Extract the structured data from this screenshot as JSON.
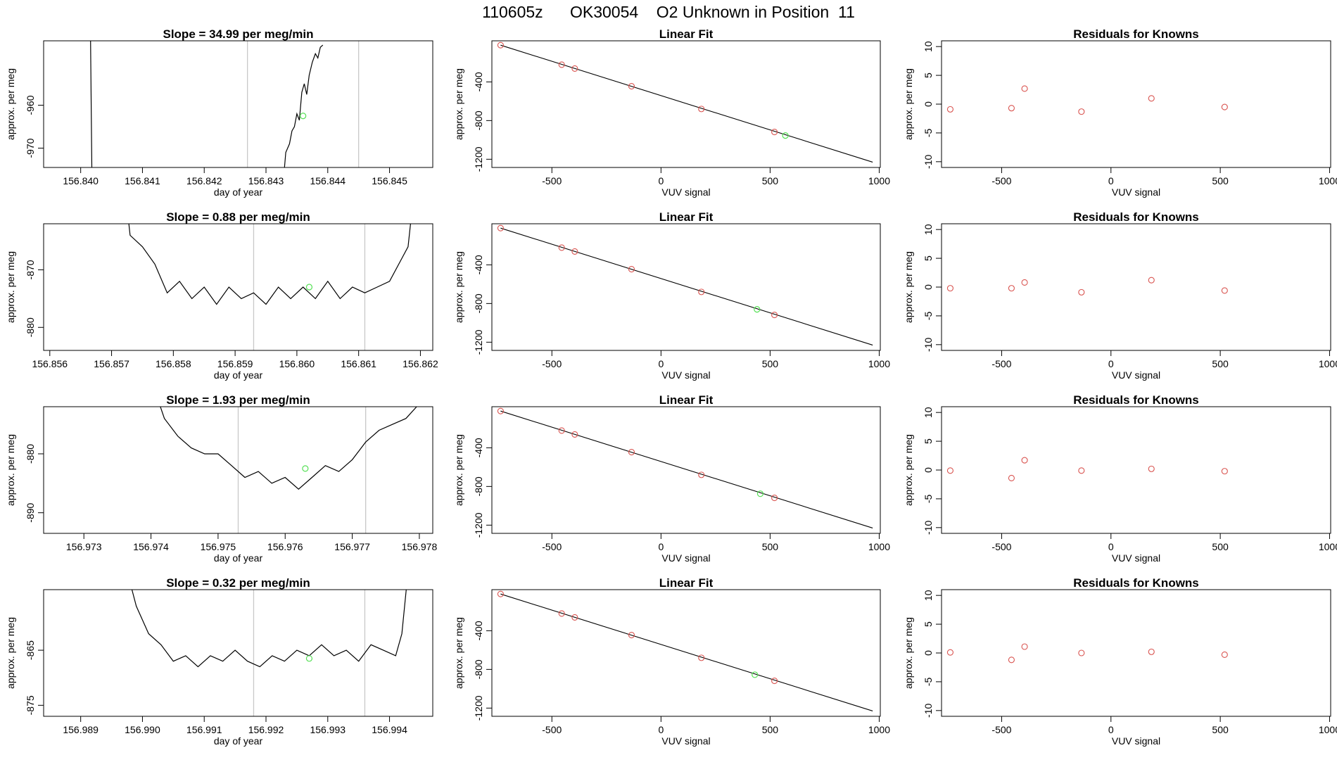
{
  "header": {
    "title": "110605z      OK30054    O2 Unknown in Position  11"
  },
  "colors": {
    "known": "#d9534f",
    "unknown": "#55e055",
    "line": "#000000",
    "marker": "#c8c8c8"
  },
  "chart_data": [
    {
      "type": "line",
      "title": "Slope =  34.99  per meg/min",
      "xlabel": "day of year",
      "ylabel": "approx. per meg",
      "xlim": [
        156.8394,
        156.8457
      ],
      "ylim": [
        -974.5,
        -945
      ],
      "xticks": [
        156.84,
        156.841,
        156.842,
        156.843,
        156.844,
        156.845
      ],
      "xtick_decimals": 3,
      "yticks": [
        -970,
        -960
      ],
      "markers": [
        156.8427,
        156.8445
      ],
      "point": [
        156.8436,
        -962.5
      ],
      "trace": [
        [
          156.84016,
          -945
        ],
        [
          156.84017,
          -960
        ],
        [
          156.84018,
          -974.5
        ]
      ],
      "trace2": [
        [
          156.8433,
          -974.5
        ],
        [
          156.84332,
          -971
        ],
        [
          156.84338,
          -969
        ],
        [
          156.84342,
          -966
        ],
        [
          156.84346,
          -965
        ],
        [
          156.8435,
          -962
        ],
        [
          156.84354,
          -963.5
        ],
        [
          156.84358,
          -957
        ],
        [
          156.84362,
          -955
        ],
        [
          156.84366,
          -957.5
        ],
        [
          156.8437,
          -953
        ],
        [
          156.84375,
          -950
        ],
        [
          156.8438,
          -948
        ],
        [
          156.84384,
          -949
        ],
        [
          156.84388,
          -946.5
        ],
        [
          156.84392,
          -946
        ]
      ]
    },
    {
      "type": "scatter",
      "title": "Linear Fit",
      "xlabel": "VUV signal",
      "ylabel": "approx. per meg",
      "xlim": [
        -775,
        1005
      ],
      "ylim": [
        -1285,
        25
      ],
      "xticks": [
        -500,
        0,
        500,
        1000
      ],
      "yticks": [
        -400,
        -800,
        -1200
      ],
      "fit_line": [
        [
          -735,
          -20
        ],
        [
          970,
          -1230
        ]
      ],
      "knowns": [
        [
          -735,
          -20
        ],
        [
          -455,
          -222
        ],
        [
          -395,
          -262
        ],
        [
          -135,
          -445
        ],
        [
          185,
          -680
        ],
        [
          520,
          -918
        ]
      ],
      "unknown": [
        [
          570,
          -955
        ]
      ]
    },
    {
      "type": "scatter",
      "title": "Residuals for Knowns",
      "xlabel": "VUV signal",
      "ylabel": "approx. per meg",
      "xlim": [
        -775,
        1005
      ],
      "ylim": [
        -11,
        11
      ],
      "xticks": [
        -500,
        0,
        500,
        1000
      ],
      "yticks": [
        -10,
        -5,
        0,
        5,
        10
      ],
      "knowns": [
        [
          -735,
          -0.9
        ],
        [
          -455,
          -0.7
        ],
        [
          -395,
          2.7
        ],
        [
          -135,
          -1.3
        ],
        [
          185,
          1.0
        ],
        [
          520,
          -0.5
        ]
      ]
    },
    {
      "type": "line",
      "title": "Slope =  0.88  per meg/min",
      "xlabel": "day of year",
      "ylabel": "approx. per meg",
      "xlim": [
        156.8559,
        156.8622
      ],
      "ylim": [
        -884,
        -862
      ],
      "xticks": [
        156.856,
        156.857,
        156.858,
        156.859,
        156.86,
        156.861,
        156.862
      ],
      "xtick_decimals": 3,
      "yticks": [
        -880,
        -870
      ],
      "markers": [
        156.8593,
        156.8611
      ],
      "point": [
        156.8602,
        -873
      ],
      "trace": [
        [
          156.85728,
          -862
        ],
        [
          156.8573,
          -864
        ],
        [
          156.8575,
          -866
        ],
        [
          156.8577,
          -869
        ],
        [
          156.8579,
          -874
        ],
        [
          156.8581,
          -872
        ],
        [
          156.8583,
          -875
        ],
        [
          156.8585,
          -873
        ],
        [
          156.8587,
          -876
        ],
        [
          156.8589,
          -873
        ],
        [
          156.8591,
          -875
        ],
        [
          156.8593,
          -874
        ],
        [
          156.8595,
          -876
        ],
        [
          156.8597,
          -873
        ],
        [
          156.8599,
          -875
        ],
        [
          156.8601,
          -873
        ],
        [
          156.8603,
          -875
        ],
        [
          156.8605,
          -872
        ],
        [
          156.8607,
          -875
        ],
        [
          156.8609,
          -873
        ],
        [
          156.8611,
          -874
        ],
        [
          156.8613,
          -873
        ],
        [
          156.8615,
          -872
        ],
        [
          156.8617,
          -868
        ],
        [
          156.8618,
          -866
        ],
        [
          156.86184,
          -862
        ]
      ]
    },
    {
      "type": "scatter",
      "title": "Linear Fit",
      "xlabel": "VUV signal",
      "ylabel": "approx. per meg",
      "xlim": [
        -775,
        1005
      ],
      "ylim": [
        -1285,
        25
      ],
      "xticks": [
        -500,
        0,
        500,
        1000
      ],
      "yticks": [
        -400,
        -800,
        -1200
      ],
      "fit_line": [
        [
          -735,
          -20
        ],
        [
          970,
          -1230
        ]
      ],
      "knowns": [
        [
          -735,
          -20
        ],
        [
          -455,
          -222
        ],
        [
          -395,
          -262
        ],
        [
          -135,
          -445
        ],
        [
          185,
          -680
        ],
        [
          520,
          -918
        ]
      ],
      "unknown": [
        [
          440,
          -860
        ]
      ]
    },
    {
      "type": "scatter",
      "title": "Residuals for Knowns",
      "xlabel": "VUV signal",
      "ylabel": "approx. per meg",
      "xlim": [
        -775,
        1005
      ],
      "ylim": [
        -11,
        11
      ],
      "xticks": [
        -500,
        0,
        500,
        1000
      ],
      "yticks": [
        -10,
        -5,
        0,
        5,
        10
      ],
      "knowns": [
        [
          -735,
          -0.2
        ],
        [
          -455,
          -0.2
        ],
        [
          -395,
          0.8
        ],
        [
          -135,
          -0.9
        ],
        [
          185,
          1.2
        ],
        [
          520,
          -0.6
        ]
      ]
    },
    {
      "type": "line",
      "title": "Slope =  1.93  per meg/min",
      "xlabel": "day of year",
      "ylabel": "approx. per meg",
      "xlim": [
        156.9724,
        156.9782
      ],
      "ylim": [
        -893.5,
        -872
      ],
      "xticks": [
        156.973,
        156.974,
        156.975,
        156.976,
        156.977,
        156.978
      ],
      "xtick_decimals": 3,
      "yticks": [
        -890,
        -880
      ],
      "markers": [
        156.9753,
        156.9772
      ],
      "point": [
        156.9763,
        -882.5
      ],
      "trace": [
        [
          156.97414,
          -872
        ],
        [
          156.9742,
          -874
        ],
        [
          156.9744,
          -877
        ],
        [
          156.9746,
          -879
        ],
        [
          156.9748,
          -880
        ],
        [
          156.975,
          -880
        ],
        [
          156.9752,
          -882
        ],
        [
          156.9754,
          -884
        ],
        [
          156.9756,
          -883
        ],
        [
          156.9758,
          -885
        ],
        [
          156.976,
          -884
        ],
        [
          156.9762,
          -886
        ],
        [
          156.9764,
          -884
        ],
        [
          156.9766,
          -882
        ],
        [
          156.9768,
          -883
        ],
        [
          156.977,
          -881
        ],
        [
          156.9772,
          -878
        ],
        [
          156.9774,
          -876
        ],
        [
          156.9776,
          -875
        ],
        [
          156.9778,
          -874
        ],
        [
          156.97796,
          -872
        ]
      ]
    },
    {
      "type": "scatter",
      "title": "Linear Fit",
      "xlabel": "VUV signal",
      "ylabel": "approx. per meg",
      "xlim": [
        -775,
        1005
      ],
      "ylim": [
        -1285,
        25
      ],
      "xticks": [
        -500,
        0,
        500,
        1000
      ],
      "yticks": [
        -400,
        -800,
        -1200
      ],
      "fit_line": [
        [
          -735,
          -20
        ],
        [
          970,
          -1230
        ]
      ],
      "knowns": [
        [
          -735,
          -20
        ],
        [
          -455,
          -222
        ],
        [
          -395,
          -262
        ],
        [
          -135,
          -445
        ],
        [
          185,
          -680
        ],
        [
          520,
          -918
        ]
      ],
      "unknown": [
        [
          455,
          -875
        ]
      ]
    },
    {
      "type": "scatter",
      "title": "Residuals for Knowns",
      "xlabel": "VUV signal",
      "ylabel": "approx. per meg",
      "xlim": [
        -775,
        1005
      ],
      "ylim": [
        -11,
        11
      ],
      "xticks": [
        -500,
        0,
        500,
        1000
      ],
      "yticks": [
        -10,
        -5,
        0,
        5,
        10
      ],
      "knowns": [
        [
          -735,
          -0.1
        ],
        [
          -455,
          -1.4
        ],
        [
          -395,
          1.7
        ],
        [
          -135,
          -0.1
        ],
        [
          185,
          0.2
        ],
        [
          520,
          -0.2
        ]
      ]
    },
    {
      "type": "line",
      "title": "Slope =  0.32  per meg/min",
      "xlabel": "day of year",
      "ylabel": "approx. per meg",
      "xlim": [
        156.9884,
        156.9947
      ],
      "ylim": [
        -877,
        -854
      ],
      "xticks": [
        156.989,
        156.99,
        156.991,
        156.992,
        156.993,
        156.994
      ],
      "xtick_decimals": 3,
      "yticks": [
        -875,
        -865
      ],
      "markers": [
        156.9918,
        156.9936
      ],
      "point": [
        156.9927,
        -866.5
      ],
      "trace": [
        [
          156.98983,
          -854
        ],
        [
          156.9899,
          -857
        ],
        [
          156.9901,
          -862
        ],
        [
          156.9903,
          -864
        ],
        [
          156.9905,
          -867
        ],
        [
          156.9907,
          -866
        ],
        [
          156.9909,
          -868
        ],
        [
          156.9911,
          -866
        ],
        [
          156.9913,
          -867
        ],
        [
          156.9915,
          -865
        ],
        [
          156.9917,
          -867
        ],
        [
          156.9919,
          -868
        ],
        [
          156.9921,
          -866
        ],
        [
          156.9923,
          -867
        ],
        [
          156.9925,
          -865
        ],
        [
          156.9927,
          -866
        ],
        [
          156.9929,
          -864
        ],
        [
          156.9931,
          -866
        ],
        [
          156.9933,
          -865
        ],
        [
          156.9935,
          -867
        ],
        [
          156.9937,
          -864
        ],
        [
          156.9939,
          -865
        ],
        [
          156.9941,
          -866
        ],
        [
          156.9942,
          -862
        ],
        [
          156.99427,
          -854
        ]
      ]
    },
    {
      "type": "scatter",
      "title": "Linear Fit",
      "xlabel": "VUV signal",
      "ylabel": "approx. per meg",
      "xlim": [
        -775,
        1005
      ],
      "ylim": [
        -1285,
        25
      ],
      "xticks": [
        -500,
        0,
        500,
        1000
      ],
      "yticks": [
        -400,
        -800,
        -1200
      ],
      "fit_line": [
        [
          -735,
          -20
        ],
        [
          970,
          -1230
        ]
      ],
      "knowns": [
        [
          -735,
          -20
        ],
        [
          -455,
          -222
        ],
        [
          -395,
          -262
        ],
        [
          -135,
          -445
        ],
        [
          185,
          -680
        ],
        [
          520,
          -918
        ]
      ],
      "unknown": [
        [
          430,
          -855
        ]
      ]
    },
    {
      "type": "scatter",
      "title": "Residuals for Knowns",
      "xlabel": "VUV signal",
      "ylabel": "approx. per meg",
      "xlim": [
        -775,
        1005
      ],
      "ylim": [
        -11,
        11
      ],
      "xticks": [
        -500,
        0,
        500,
        1000
      ],
      "yticks": [
        -10,
        -5,
        0,
        5,
        10
      ],
      "knowns": [
        [
          -735,
          0.1
        ],
        [
          -455,
          -1.2
        ],
        [
          -395,
          1.1
        ],
        [
          -135,
          0.0
        ],
        [
          185,
          0.2
        ],
        [
          520,
          -0.3
        ]
      ]
    }
  ]
}
